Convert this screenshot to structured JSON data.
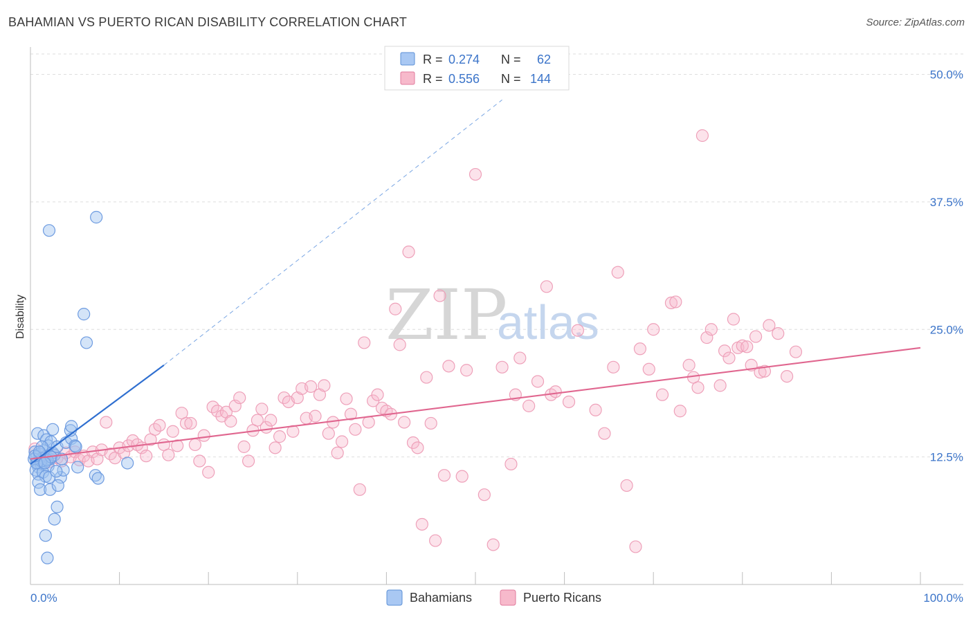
{
  "title": "BAHAMIAN VS PUERTO RICAN DISABILITY CORRELATION CHART",
  "source": "Source: ZipAtlas.com",
  "watermark": {
    "zip": "ZIP",
    "atlas": "atlas"
  },
  "legend_top": {
    "r_label": "R =",
    "n_label": "N =",
    "rows": [
      {
        "r": "0.274",
        "n": "62",
        "fill": "#a9c8f3",
        "stroke": "#5b8fd6"
      },
      {
        "r": "0.556",
        "n": "144",
        "fill": "#f7b9cb",
        "stroke": "#e07a9c"
      }
    ]
  },
  "legend_bottom": [
    "Bahamians",
    "Puerto Ricans"
  ],
  "chart_data": {
    "type": "scatter",
    "title": "BAHAMIAN VS PUERTO RICAN DISABILITY CORRELATION CHART",
    "xlabel": "",
    "ylabel": "Disability",
    "xlim": [
      0,
      100
    ],
    "ylim": [
      0,
      52
    ],
    "x_tick_labels": [
      "0.0%",
      "100.0%"
    ],
    "y_ticks": [
      12.5,
      25.0,
      37.5,
      50.0
    ],
    "y_tick_labels": [
      "12.5%",
      "25.0%",
      "37.5%",
      "50.0%"
    ],
    "grid": true,
    "legend": "top-center",
    "colors": {
      "bahamians": "#6d9be0",
      "puerto_ricans": "#f0a3bb",
      "blue_line": "#2f6fd0",
      "pink_line": "#e0668f"
    },
    "series": [
      {
        "name": "Bahamians",
        "trend": {
          "x": [
            0,
            15
          ],
          "y": [
            11.8,
            21.5
          ],
          "dashed_to": [
            53,
            47.5
          ]
        },
        "points": [
          [
            0.5,
            13.0
          ],
          [
            0.7,
            12.5
          ],
          [
            0.8,
            12.0
          ],
          [
            0.9,
            11.5
          ],
          [
            1.0,
            12.8
          ],
          [
            1.1,
            12.2
          ],
          [
            1.2,
            11.8
          ],
          [
            1.3,
            12.4
          ],
          [
            1.5,
            12.0
          ],
          [
            1.6,
            13.2
          ],
          [
            1.8,
            12.6
          ],
          [
            2.0,
            11.6
          ],
          [
            2.2,
            12.3
          ],
          [
            0.6,
            11.2
          ],
          [
            0.9,
            10.8
          ],
          [
            1.4,
            11.0
          ],
          [
            1.7,
            10.6
          ],
          [
            2.1,
            10.5
          ],
          [
            2.5,
            12.9
          ],
          [
            0.8,
            14.8
          ],
          [
            1.5,
            14.6
          ],
          [
            1.8,
            14.2
          ],
          [
            2.0,
            13.6
          ],
          [
            2.3,
            14.0
          ],
          [
            2.7,
            12.7
          ],
          [
            3.0,
            13.5
          ],
          [
            3.4,
            10.5
          ],
          [
            3.7,
            11.2
          ],
          [
            4.0,
            13.9
          ],
          [
            4.6,
            14.3
          ],
          [
            4.5,
            15.1
          ],
          [
            2.5,
            15.2
          ],
          [
            4.6,
            15.5
          ],
          [
            5.0,
            13.6
          ],
          [
            5.1,
            13.5
          ],
          [
            5.3,
            11.5
          ],
          [
            7.3,
            10.7
          ],
          [
            7.6,
            10.4
          ],
          [
            0.9,
            10.0
          ],
          [
            1.1,
            9.3
          ],
          [
            2.2,
            9.3
          ],
          [
            3.1,
            9.7
          ],
          [
            3.0,
            7.6
          ],
          [
            2.7,
            6.4
          ],
          [
            1.7,
            4.8
          ],
          [
            1.9,
            2.6
          ],
          [
            2.1,
            34.7
          ],
          [
            7.4,
            36.0
          ],
          [
            6.0,
            26.5
          ],
          [
            6.3,
            23.7
          ],
          [
            10.9,
            11.9
          ],
          [
            1.2,
            12.1
          ],
          [
            0.4,
            12.3
          ],
          [
            1.9,
            12.2
          ],
          [
            0.7,
            11.9
          ],
          [
            2.3,
            12.5
          ],
          [
            1.3,
            13.5
          ],
          [
            3.5,
            12.3
          ],
          [
            0.5,
            12.6
          ],
          [
            1.6,
            11.9
          ],
          [
            2.9,
            11.1
          ],
          [
            1.0,
            13.0
          ]
        ]
      },
      {
        "name": "Puerto Ricans",
        "trend": {
          "x": [
            0,
            100
          ],
          "y": [
            12.3,
            23.2
          ]
        },
        "points": [
          [
            0.5,
            13.3
          ],
          [
            1.0,
            12.2
          ],
          [
            1.5,
            12.5
          ],
          [
            2.0,
            12.0
          ],
          [
            2.5,
            12.7
          ],
          [
            3.0,
            12.4
          ],
          [
            3.5,
            12.1
          ],
          [
            4.0,
            12.9
          ],
          [
            4.5,
            12.5
          ],
          [
            5.0,
            13.0
          ],
          [
            5.5,
            12.2
          ],
          [
            6.0,
            12.6
          ],
          [
            6.5,
            12.1
          ],
          [
            7.0,
            13.0
          ],
          [
            7.5,
            12.3
          ],
          [
            8.0,
            13.2
          ],
          [
            8.5,
            15.9
          ],
          [
            9.0,
            12.8
          ],
          [
            9.5,
            12.4
          ],
          [
            10.0,
            13.4
          ],
          [
            10.5,
            12.9
          ],
          [
            11.0,
            13.6
          ],
          [
            11.5,
            14.1
          ],
          [
            12.0,
            13.7
          ],
          [
            12.5,
            13.4
          ],
          [
            13.0,
            12.6
          ],
          [
            13.5,
            14.2
          ],
          [
            14.0,
            15.2
          ],
          [
            14.5,
            15.6
          ],
          [
            15.0,
            13.7
          ],
          [
            15.5,
            12.7
          ],
          [
            16.0,
            15.0
          ],
          [
            16.5,
            13.6
          ],
          [
            17.0,
            16.8
          ],
          [
            17.5,
            15.8
          ],
          [
            18.0,
            15.8
          ],
          [
            18.5,
            13.7
          ],
          [
            19.0,
            12.1
          ],
          [
            19.5,
            14.6
          ],
          [
            20.0,
            11.0
          ],
          [
            20.5,
            17.4
          ],
          [
            21.0,
            17.0
          ],
          [
            21.5,
            16.5
          ],
          [
            22.0,
            16.9
          ],
          [
            22.5,
            16.0
          ],
          [
            23.0,
            17.5
          ],
          [
            23.5,
            18.3
          ],
          [
            24.0,
            13.5
          ],
          [
            24.5,
            12.1
          ],
          [
            25.0,
            15.1
          ],
          [
            25.5,
            16.1
          ],
          [
            26.0,
            17.2
          ],
          [
            26.5,
            15.4
          ],
          [
            27.0,
            16.1
          ],
          [
            27.5,
            13.4
          ],
          [
            28.0,
            14.5
          ],
          [
            28.5,
            18.3
          ],
          [
            29.0,
            17.9
          ],
          [
            29.5,
            15.0
          ],
          [
            30.0,
            18.3
          ],
          [
            30.5,
            19.2
          ],
          [
            31.0,
            16.3
          ],
          [
            31.5,
            19.4
          ],
          [
            32.0,
            16.5
          ],
          [
            32.5,
            18.6
          ],
          [
            33.0,
            19.5
          ],
          [
            33.5,
            14.8
          ],
          [
            34.0,
            15.9
          ],
          [
            34.5,
            12.9
          ],
          [
            35.0,
            14.0
          ],
          [
            35.5,
            18.2
          ],
          [
            36.0,
            16.7
          ],
          [
            36.5,
            15.2
          ],
          [
            37.0,
            9.3
          ],
          [
            37.5,
            23.7
          ],
          [
            38.0,
            15.9
          ],
          [
            38.5,
            18.0
          ],
          [
            39.0,
            18.6
          ],
          [
            39.5,
            17.3
          ],
          [
            40.0,
            17.0
          ],
          [
            40.5,
            16.7
          ],
          [
            41.0,
            27.0
          ],
          [
            41.5,
            23.5
          ],
          [
            42.0,
            15.9
          ],
          [
            42.5,
            32.6
          ],
          [
            43.0,
            13.9
          ],
          [
            43.5,
            13.4
          ],
          [
            44.0,
            5.9
          ],
          [
            44.5,
            20.3
          ],
          [
            45.0,
            15.8
          ],
          [
            45.5,
            4.3
          ],
          [
            46.0,
            28.3
          ],
          [
            46.5,
            10.7
          ],
          [
            47.0,
            21.4
          ],
          [
            48.5,
            10.6
          ],
          [
            49.0,
            21.0
          ],
          [
            50.0,
            40.2
          ],
          [
            51.0,
            8.8
          ],
          [
            52.0,
            3.9
          ],
          [
            53.0,
            21.3
          ],
          [
            54.0,
            11.8
          ],
          [
            54.5,
            18.6
          ],
          [
            55.0,
            22.2
          ],
          [
            56.0,
            17.5
          ],
          [
            57.0,
            19.9
          ],
          [
            58.0,
            29.2
          ],
          [
            58.5,
            18.6
          ],
          [
            59.0,
            18.9
          ],
          [
            60.5,
            17.9
          ],
          [
            61.5,
            24.9
          ],
          [
            63.5,
            17.1
          ],
          [
            64.5,
            14.8
          ],
          [
            65.5,
            21.3
          ],
          [
            66.0,
            30.6
          ],
          [
            67.0,
            9.7
          ],
          [
            68.0,
            3.7
          ],
          [
            68.5,
            23.1
          ],
          [
            69.5,
            21.1
          ],
          [
            70.0,
            25.0
          ],
          [
            71.0,
            18.6
          ],
          [
            72.0,
            27.6
          ],
          [
            72.5,
            27.7
          ],
          [
            73.0,
            17.0
          ],
          [
            74.0,
            21.5
          ],
          [
            74.5,
            20.3
          ],
          [
            75.0,
            19.3
          ],
          [
            75.5,
            44.0
          ],
          [
            76.0,
            24.2
          ],
          [
            76.5,
            25.0
          ],
          [
            77.5,
            19.5
          ],
          [
            78.0,
            22.9
          ],
          [
            78.5,
            22.2
          ],
          [
            79.0,
            26.0
          ],
          [
            79.5,
            23.2
          ],
          [
            80.0,
            23.4
          ],
          [
            80.5,
            23.3
          ],
          [
            81.0,
            21.5
          ],
          [
            81.5,
            24.3
          ],
          [
            82.0,
            20.8
          ],
          [
            82.5,
            20.9
          ],
          [
            83.0,
            25.4
          ],
          [
            84.0,
            24.6
          ],
          [
            85.0,
            20.4
          ],
          [
            86.0,
            22.8
          ]
        ]
      }
    ]
  }
}
